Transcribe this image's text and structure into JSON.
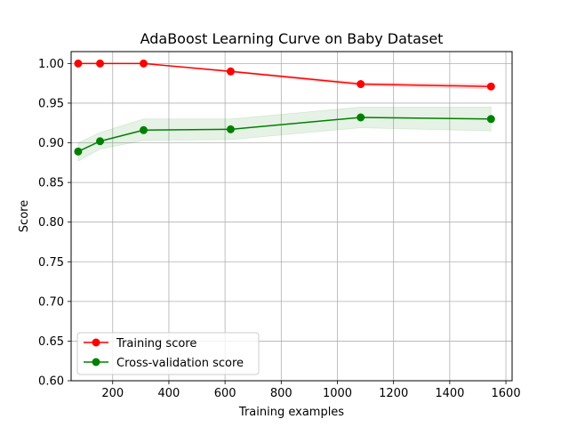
{
  "chart_data": {
    "type": "line",
    "title": "AdaBoost Learning Curve on Baby Dataset",
    "xlabel": "Training examples",
    "ylabel": "Score",
    "xlim": [
      52,
      1622
    ],
    "ylim": [
      0.6,
      1.015
    ],
    "x_ticks": [
      200,
      400,
      600,
      800,
      1000,
      1200,
      1400,
      1600
    ],
    "y_ticks": [
      0.6,
      0.65,
      0.7,
      0.75,
      0.8,
      0.85,
      0.9,
      0.95,
      1.0
    ],
    "x_tick_labels": [
      "200",
      "400",
      "600",
      "800",
      "1000",
      "1200",
      "1400",
      "1600"
    ],
    "y_tick_labels": [
      "0.60",
      "0.65",
      "0.70",
      "0.75",
      "0.80",
      "0.85",
      "0.90",
      "0.95",
      "1.00"
    ],
    "grid": true,
    "legend_position": "lower-left",
    "x": [
      77,
      155,
      310,
      620,
      1083,
      1547
    ],
    "series": [
      {
        "name": "Training score",
        "color": "#ff0000",
        "values": [
          1.0,
          1.0,
          1.0,
          0.99,
          0.974,
          0.971
        ],
        "band_lower": [
          1.0,
          1.0,
          1.0,
          0.989,
          0.972,
          0.968
        ],
        "band_upper": [
          1.0,
          1.0,
          1.0,
          0.991,
          0.976,
          0.974
        ]
      },
      {
        "name": "Cross-validation score",
        "color": "#008000",
        "values": [
          0.889,
          0.902,
          0.916,
          0.917,
          0.932,
          0.93
        ],
        "band_lower": [
          0.877,
          0.892,
          0.903,
          0.904,
          0.919,
          0.915
        ],
        "band_upper": [
          0.9,
          0.913,
          0.93,
          0.93,
          0.945,
          0.945
        ]
      }
    ]
  }
}
